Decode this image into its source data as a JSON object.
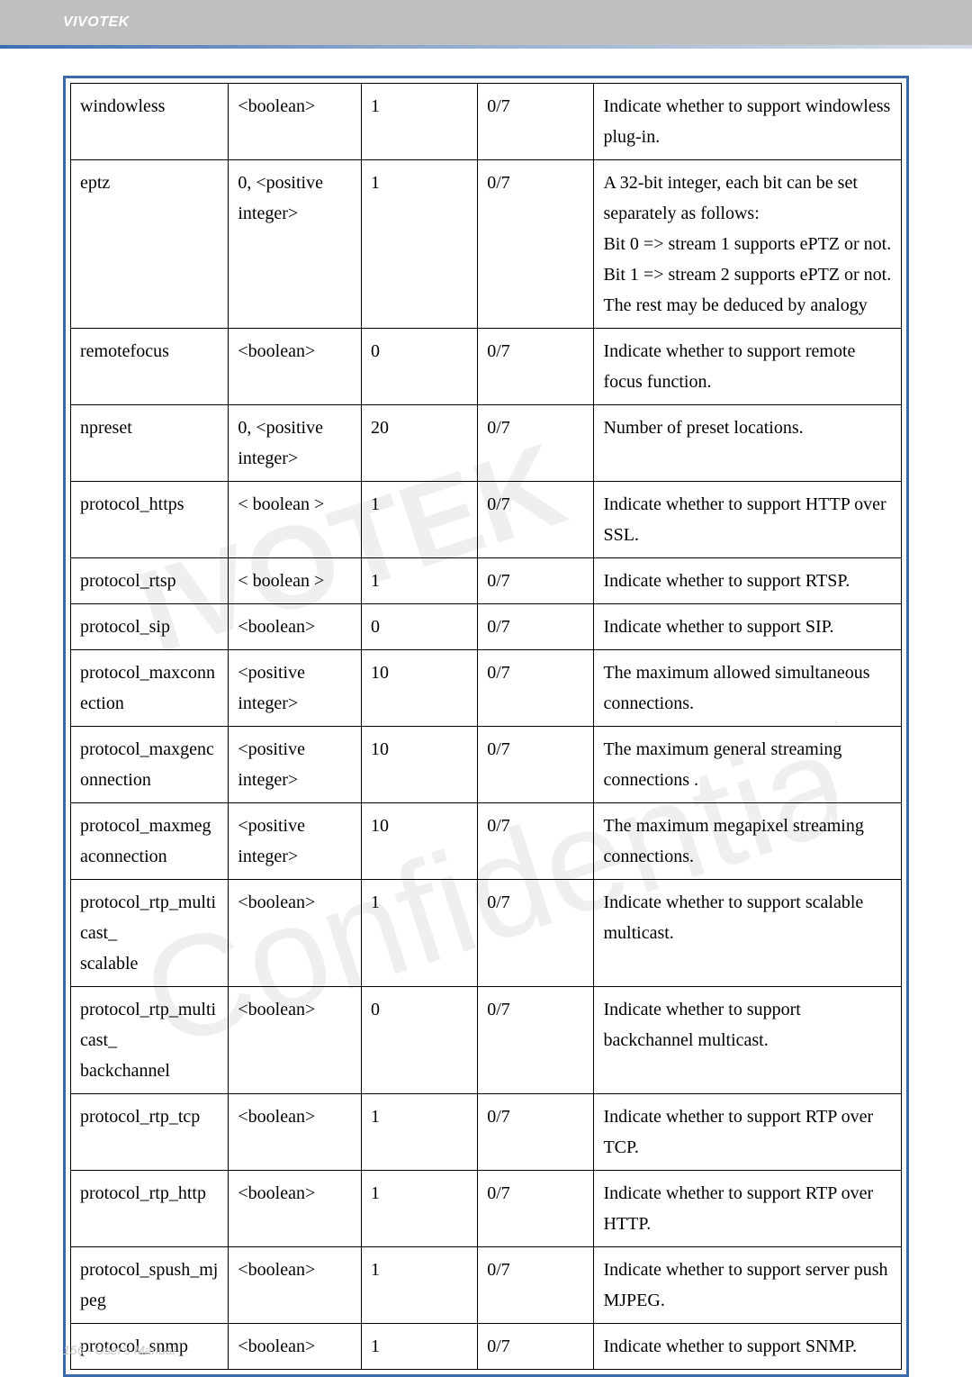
{
  "header": {
    "brand": "VIVOTEK"
  },
  "footer": {
    "text": "156 - User's Manual"
  },
  "rows": [
    {
      "name": "windowless",
      "value": "<boolean>",
      "default": "1",
      "security": "0/7",
      "desc": "Indicate whether to support windowless plug-in."
    },
    {
      "name": "eptz",
      "value": "0, <positive integer>",
      "default": "1",
      "security": "0/7",
      "desc": "A 32-bit integer, each bit can be set separately as follows:\nBit 0 => stream 1 supports ePTZ or not.\nBit 1 => stream 2 supports ePTZ or not.\nThe rest may be deduced by analogy"
    },
    {
      "name": "remotefocus",
      "value": "<boolean>",
      "default": "0",
      "security": "0/7",
      "desc": "Indicate whether to support remote focus function.\n "
    },
    {
      "name": "npreset",
      "value": "0, <positive integer>",
      "default": "20",
      "security": "0/7",
      "desc": "Number of preset locations."
    },
    {
      "name": "protocol_https",
      "value": "< boolean >",
      "default": "1",
      "security": "0/7",
      "desc": "Indicate whether to support HTTP over SSL."
    },
    {
      "name": "protocol_rtsp",
      "value": "< boolean >",
      "default": "1",
      "security": "0/7",
      "desc": "Indicate whether to support RTSP."
    },
    {
      "name": "protocol_sip",
      "value": "<boolean>",
      "default": "0",
      "security": "0/7",
      "desc": "Indicate whether to support SIP."
    },
    {
      "name": "protocol_maxconnection",
      "value": "<positive integer>",
      "default": "10",
      "security": "0/7",
      "desc": "The maximum allowed simultaneous connections."
    },
    {
      "name": "protocol_maxgenconnection",
      "value": "<positive integer>",
      "default": "10",
      "security": "0/7",
      "desc": "The maximum general streaming connections ."
    },
    {
      "name": "protocol_maxmegaconnection",
      "value": "<positive integer>",
      "default": "10",
      "security": "0/7",
      "desc": "The maximum megapixel streaming connections."
    },
    {
      "name": "protocol_rtp_multicast_\nscalable",
      "value": "<boolean>",
      "default": "1",
      "security": "0/7",
      "desc": "Indicate whether to support scalable multicast."
    },
    {
      "name": "protocol_rtp_multicast_\nbackchannel",
      "value": "<boolean>",
      "default": "0",
      "security": "0/7",
      "desc": "Indicate whether to support backchannel multicast."
    },
    {
      "name": "protocol_rtp_tcp",
      "value": "<boolean>",
      "default": "1",
      "security": "0/7",
      "desc": "Indicate whether to support RTP over TCP."
    },
    {
      "name": "protocol_rtp_http",
      "value": "<boolean>",
      "default": "1",
      "security": "0/7",
      "desc": "Indicate whether to support RTP over HTTP."
    },
    {
      "name": "protocol_spush_mjpeg",
      "value": "<boolean>",
      "default": "1",
      "security": "0/7",
      "desc": "Indicate whether to support server push MJPEG."
    },
    {
      "name": "protocol_snmp",
      "value": "<boolean>",
      "default": "1",
      "security": "0/7",
      "desc": "Indicate whether to support SNMP."
    }
  ]
}
